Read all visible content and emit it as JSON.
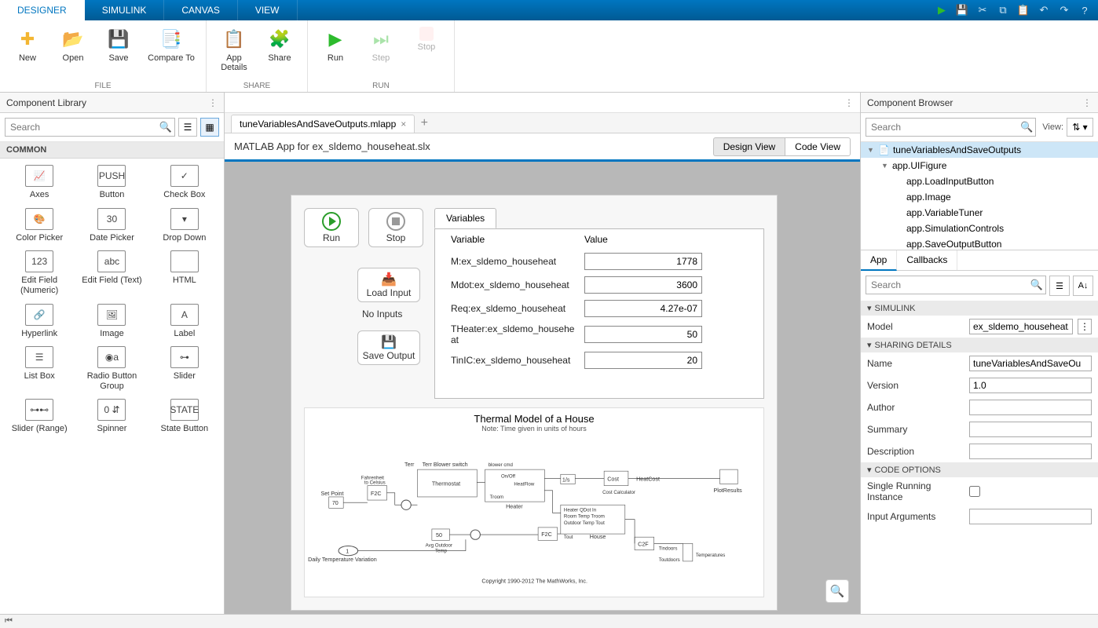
{
  "tabs": {
    "designer": "DESIGNER",
    "simulink": "SIMULINK",
    "canvas": "CANVAS",
    "view": "VIEW"
  },
  "ribbon": {
    "new": "New",
    "open": "Open",
    "save": "Save",
    "compare": "Compare To",
    "file_group": "FILE",
    "app_details": "App\nDetails",
    "share": "Share",
    "share_group": "SHARE",
    "run": "Run",
    "step": "Step",
    "stop": "Stop",
    "run_group": "RUN"
  },
  "left": {
    "title": "Component Library",
    "search_placeholder": "Search",
    "section": "COMMON",
    "components": [
      {
        "name": "Axes",
        "glyph": "📈"
      },
      {
        "name": "Button",
        "glyph": "PUSH"
      },
      {
        "name": "Check Box",
        "glyph": "✓"
      },
      {
        "name": "Color Picker",
        "glyph": "🎨"
      },
      {
        "name": "Date Picker",
        "glyph": "30"
      },
      {
        "name": "Drop Down",
        "glyph": "▾"
      },
      {
        "name": "Edit Field (Numeric)",
        "glyph": "123"
      },
      {
        "name": "Edit Field (Text)",
        "glyph": "abc"
      },
      {
        "name": "HTML",
        "glyph": "</>"
      },
      {
        "name": "Hyperlink",
        "glyph": "🔗"
      },
      {
        "name": "Image",
        "glyph": "🖼"
      },
      {
        "name": "Label",
        "glyph": "A"
      },
      {
        "name": "List Box",
        "glyph": "☰"
      },
      {
        "name": "Radio Button Group",
        "glyph": "◉a"
      },
      {
        "name": "Slider",
        "glyph": "⊶"
      },
      {
        "name": "Slider (Range)",
        "glyph": "⊶⊷"
      },
      {
        "name": "Spinner",
        "glyph": "0 ⇵"
      },
      {
        "name": "State Button",
        "glyph": "STATE"
      }
    ]
  },
  "doc": {
    "tab_name": "tuneVariablesAndSaveOutputs.mlapp",
    "title": "MATLAB App for ex_sldemo_househeat.slx",
    "design_view": "Design View",
    "code_view": "Code View"
  },
  "app": {
    "run": "Run",
    "stop": "Stop",
    "load_input": "Load Input",
    "no_inputs": "No Inputs",
    "save_output": "Save Output",
    "var_tab": "Variables",
    "col_var": "Variable",
    "col_val": "Value",
    "vars": [
      {
        "n": "M:ex_sldemo_househeat",
        "v": "1778"
      },
      {
        "n": "Mdot:ex_sldemo_househeat",
        "v": "3600"
      },
      {
        "n": "Req:ex_sldemo_househeat",
        "v": "4.27e-07"
      },
      {
        "n": "THeater:ex_sldemo_househeat",
        "v": "50"
      },
      {
        "n": "TinIC:ex_sldemo_househeat",
        "v": "20"
      }
    ],
    "diagram_title": "Thermal Model of a House",
    "diagram_sub": "Note: Time given in units of hours",
    "copyright": "Copyright 1990-2012 The MathWorks, Inc."
  },
  "right": {
    "title": "Component Browser",
    "search_placeholder": "Search",
    "view_label": "View:",
    "tree": [
      {
        "label": "tuneVariablesAndSaveOutputs",
        "indent": 0,
        "sel": true,
        "tw": "▼",
        "icon": "📄"
      },
      {
        "label": "app.UIFigure",
        "indent": 1,
        "tw": "▼"
      },
      {
        "label": "app.LoadInputButton",
        "indent": 2
      },
      {
        "label": "app.Image",
        "indent": 2
      },
      {
        "label": "app.VariableTuner",
        "indent": 2
      },
      {
        "label": "app.SimulationControls",
        "indent": 2
      },
      {
        "label": "app.SaveOutputButton",
        "indent": 2
      }
    ],
    "tab_app": "App",
    "tab_callbacks": "Callbacks",
    "groups": {
      "simulink": "SIMULINK",
      "sharing": "SHARING DETAILS",
      "code": "CODE OPTIONS"
    },
    "props": {
      "model_label": "Model",
      "model_value": "ex_sldemo_househeat.slx",
      "name_label": "Name",
      "name_value": "tuneVariablesAndSaveOu",
      "version_label": "Version",
      "version_value": "1.0",
      "author_label": "Author",
      "author_value": "",
      "summary_label": "Summary",
      "summary_value": "",
      "description_label": "Description",
      "description_value": "",
      "single_label": "Single Running Instance",
      "inputargs_label": "Input Arguments",
      "inputargs_value": ""
    }
  }
}
